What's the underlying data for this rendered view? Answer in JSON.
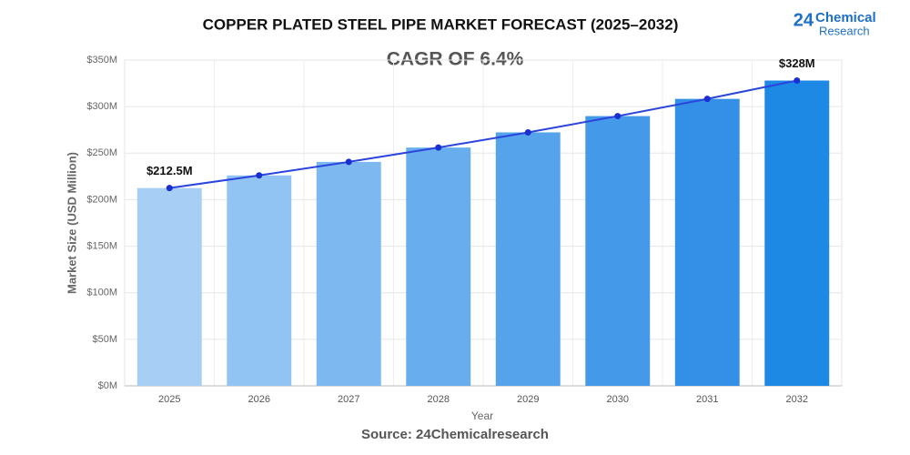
{
  "chart_data": {
    "type": "bar_line",
    "title": "COPPER PLATED STEEL PIPE MARKET FORECAST (2025–2032)",
    "subtitle": "CAGR OF 6.4%",
    "x_label": "Year",
    "y_label": "Market Size (USD Million)",
    "source": "Source: 24Chemicalresearch",
    "logo": {
      "number": "24",
      "line1": "Chemical",
      "line2": "Research"
    },
    "categories": [
      "2025",
      "2026",
      "2027",
      "2028",
      "2029",
      "2030",
      "2031",
      "2032"
    ],
    "series": [
      {
        "type": "bar",
        "colors": [
          "#a7cff5",
          "#92c4f3",
          "#7db9f0",
          "#68aeee",
          "#55a3eb",
          "#4499e9",
          "#3490e7",
          "#1e88e5"
        ],
        "values": [
          212.5,
          226.1,
          240.6,
          256.0,
          272.3,
          289.8,
          308.3,
          328
        ]
      },
      {
        "type": "line",
        "color": "#2a44dc",
        "marker_color": "#1a2fd0",
        "values": [
          212.5,
          226.1,
          240.6,
          256.0,
          272.3,
          289.8,
          308.3,
          328
        ],
        "value_labels": [
          "$212.5M",
          null,
          null,
          null,
          null,
          null,
          null,
          "$328M"
        ]
      }
    ],
    "ylim": [
      0,
      350
    ],
    "yticks": [
      {
        "value": 0,
        "label": "$0M"
      },
      {
        "value": 50,
        "label": "$50M"
      },
      {
        "value": 100,
        "label": "$100M"
      },
      {
        "value": 150,
        "label": "$150M"
      },
      {
        "value": 200,
        "label": "$200M"
      },
      {
        "value": 250,
        "label": "$250M"
      },
      {
        "value": 300,
        "label": "$300M"
      },
      {
        "value": 350,
        "label": "$350M"
      }
    ],
    "grid": true
  }
}
